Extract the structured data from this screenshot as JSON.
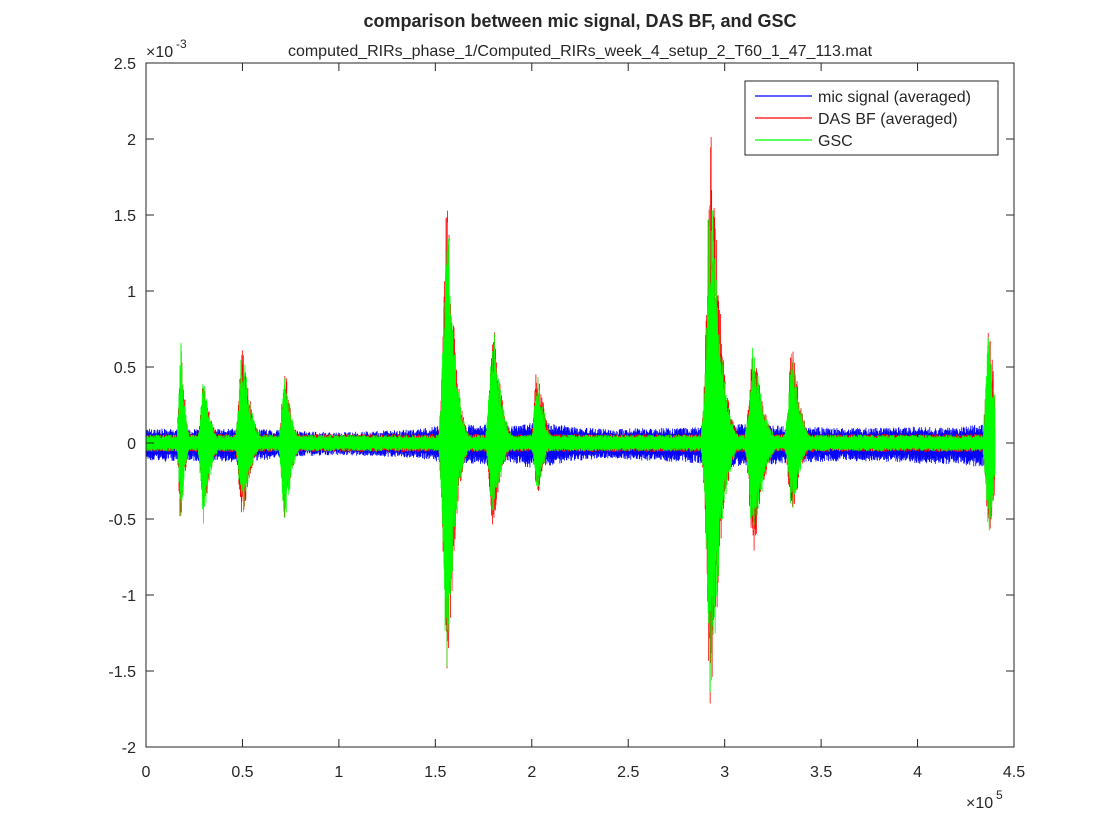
{
  "colors": {
    "mic": "#0000ff",
    "das": "#ff0000",
    "gsc": "#00ff00",
    "axis": "#262626",
    "background": "#ffffff"
  },
  "chart_data": {
    "type": "line",
    "title": "comparison between mic signal, DAS BF, and GSC",
    "subtitle": "computed_RIRs_phase_1/Computed_RIRs_week_4_setup_2_T60_1_47_113.mat",
    "xlabel": "",
    "ylabel": "",
    "x_exponent_label": "×10",
    "x_exponent": "5",
    "y_exponent_label": "×10",
    "y_exponent": "-3",
    "xlim": [
      0,
      4.5
    ],
    "ylim": [
      -2,
      2.5
    ],
    "x_unit_scale": 100000,
    "y_unit_scale": 0.001,
    "x_ticks": [
      0,
      0.5,
      1,
      1.5,
      2,
      2.5,
      3,
      3.5,
      4,
      4.5
    ],
    "x_tick_labels": [
      "0",
      "0.5",
      "1",
      "1.5",
      "2",
      "2.5",
      "3",
      "3.5",
      "4",
      "4.5"
    ],
    "y_ticks": [
      -2,
      -1.5,
      -1,
      -0.5,
      0,
      0.5,
      1,
      1.5,
      2,
      2.5
    ],
    "y_tick_labels": [
      "-2",
      "-1.5",
      "-1",
      "-0.5",
      "0",
      "0.5",
      "1",
      "1.5",
      "2",
      "2.5"
    ],
    "grid": false,
    "legend_position": "top-right",
    "data_extent_x": [
      0,
      4.4
    ],
    "series": [
      {
        "name": "mic signal (averaged)",
        "color": "#0000ff",
        "envelope_x": [
          0,
          0.15,
          0.35,
          0.5,
          0.7,
          0.8,
          1.0,
          1.2,
          1.4,
          1.5,
          1.55,
          1.6,
          1.7,
          1.8,
          1.9,
          2.0,
          2.1,
          2.2,
          2.4,
          2.6,
          2.8,
          2.9,
          3.0,
          3.2,
          3.4,
          3.6,
          3.8,
          4.0,
          4.2,
          4.3,
          4.4
        ],
        "envelope_max": [
          0.1,
          0.09,
          0.09,
          0.1,
          0.09,
          0.08,
          0.07,
          0.08,
          0.09,
          0.11,
          0.14,
          0.13,
          0.12,
          0.13,
          0.12,
          0.14,
          0.13,
          0.11,
          0.09,
          0.1,
          0.1,
          0.12,
          0.13,
          0.12,
          0.11,
          0.1,
          0.1,
          0.11,
          0.1,
          0.12,
          0.12
        ],
        "envelope_min": [
          -0.13,
          -0.12,
          -0.12,
          -0.13,
          -0.1,
          -0.09,
          -0.08,
          -0.09,
          -0.1,
          -0.12,
          -0.15,
          -0.16,
          -0.14,
          -0.15,
          -0.13,
          -0.17,
          -0.15,
          -0.12,
          -0.1,
          -0.12,
          -0.13,
          -0.14,
          -0.16,
          -0.15,
          -0.13,
          -0.12,
          -0.12,
          -0.14,
          -0.14,
          -0.16,
          -0.16
        ]
      },
      {
        "name": "DAS BF (averaged)",
        "color": "#ff0000",
        "bursts": [
          {
            "center": 0.18,
            "width": 0.03,
            "max": 0.73,
            "min": -0.58
          },
          {
            "center": 0.3,
            "width": 0.05,
            "max": 0.45,
            "min": -0.45
          },
          {
            "center": 0.5,
            "width": 0.06,
            "max": 0.65,
            "min": -0.5
          },
          {
            "center": 0.72,
            "width": 0.05,
            "max": 0.48,
            "min": -0.5
          },
          {
            "center": 1.56,
            "width": 0.06,
            "max": 1.63,
            "min": -1.6
          },
          {
            "center": 1.8,
            "width": 0.06,
            "max": 0.8,
            "min": -0.55
          },
          {
            "center": 2.03,
            "width": 0.05,
            "max": 0.55,
            "min": -0.35
          },
          {
            "center": 2.93,
            "width": 0.07,
            "max": 2.07,
            "min": -1.8
          },
          {
            "center": 3.15,
            "width": 0.07,
            "max": 0.65,
            "min": -0.75
          },
          {
            "center": 3.35,
            "width": 0.06,
            "max": 0.65,
            "min": -0.5
          },
          {
            "center": 4.37,
            "width": 0.05,
            "max": 0.78,
            "min": -0.68
          }
        ]
      },
      {
        "name": "GSC",
        "color": "#00ff00",
        "bursts": [
          {
            "center": 0.18,
            "width": 0.03,
            "max": 0.68,
            "min": -0.5
          },
          {
            "center": 0.3,
            "width": 0.05,
            "max": 0.42,
            "min": -0.55
          },
          {
            "center": 0.5,
            "width": 0.06,
            "max": 0.62,
            "min": -0.48
          },
          {
            "center": 0.72,
            "width": 0.05,
            "max": 0.45,
            "min": -0.55
          },
          {
            "center": 1.56,
            "width": 0.06,
            "max": 1.55,
            "min": -1.48
          },
          {
            "center": 1.8,
            "width": 0.06,
            "max": 0.78,
            "min": -0.5
          },
          {
            "center": 2.03,
            "width": 0.05,
            "max": 0.5,
            "min": -0.32
          },
          {
            "center": 2.93,
            "width": 0.07,
            "max": 1.85,
            "min": -1.7
          },
          {
            "center": 3.15,
            "width": 0.07,
            "max": 0.65,
            "min": -0.7
          },
          {
            "center": 3.35,
            "width": 0.06,
            "max": 0.6,
            "min": -0.45
          },
          {
            "center": 4.37,
            "width": 0.05,
            "max": 0.72,
            "min": -0.62
          }
        ]
      }
    ]
  }
}
